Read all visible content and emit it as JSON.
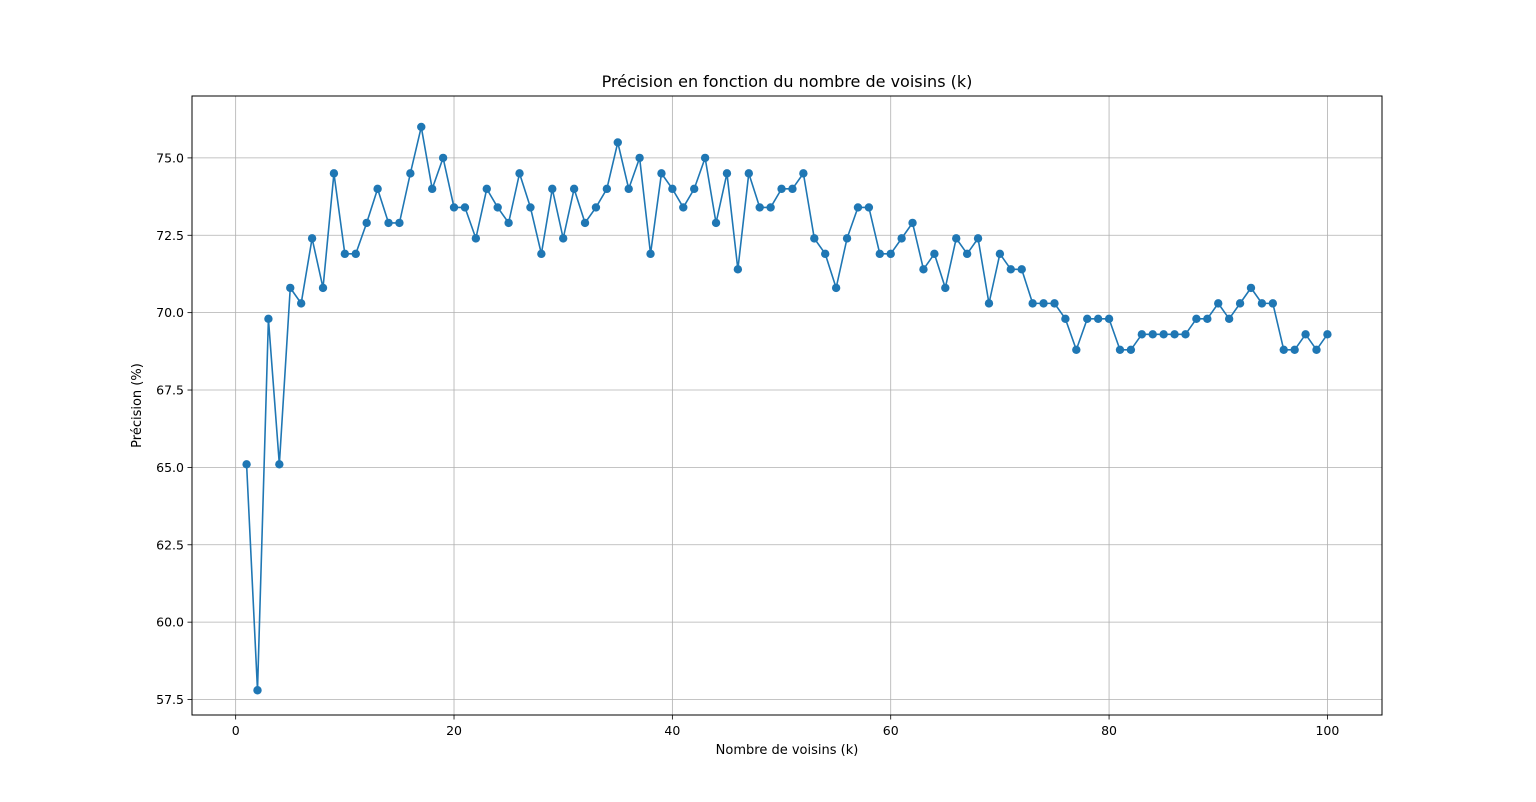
{
  "chart_data": {
    "type": "line",
    "title": "Précision en fonction du nombre de voisins (k)",
    "xlabel": "Nombre de voisins (k)",
    "ylabel": "Précision (%)",
    "xlim": [
      -4,
      105
    ],
    "ylim": [
      57.0,
      77.0
    ],
    "xticks": [
      0,
      20,
      40,
      60,
      80,
      100
    ],
    "xtick_labels": [
      "0",
      "20",
      "40",
      "60",
      "80",
      "100"
    ],
    "yticks": [
      57.5,
      60.0,
      62.5,
      65.0,
      67.5,
      70.0,
      72.5,
      75.0
    ],
    "ytick_labels": [
      "57.5",
      "60.0",
      "62.5",
      "65.0",
      "67.5",
      "70.0",
      "72.5",
      "75.0"
    ],
    "grid": true,
    "marker": "circle",
    "color": "#1f77b4",
    "x": [
      1,
      2,
      3,
      4,
      5,
      6,
      7,
      8,
      9,
      10,
      11,
      12,
      13,
      14,
      15,
      16,
      17,
      18,
      19,
      20,
      21,
      22,
      23,
      24,
      25,
      26,
      27,
      28,
      29,
      30,
      31,
      32,
      33,
      34,
      35,
      36,
      37,
      38,
      39,
      40,
      41,
      42,
      43,
      44,
      45,
      46,
      47,
      48,
      49,
      50,
      51,
      52,
      53,
      54,
      55,
      56,
      57,
      58,
      59,
      60,
      61,
      62,
      63,
      64,
      65,
      66,
      67,
      68,
      69,
      70,
      71,
      72,
      73,
      74,
      75,
      76,
      77,
      78,
      79,
      80,
      81,
      82,
      83,
      84,
      85,
      86,
      87,
      88,
      89,
      90,
      91,
      92,
      93,
      94,
      95,
      96,
      97,
      98,
      99,
      100
    ],
    "values": [
      65.1,
      57.8,
      69.8,
      65.1,
      70.8,
      70.3,
      72.4,
      70.8,
      74.5,
      71.9,
      71.9,
      72.9,
      74.0,
      72.9,
      72.9,
      74.5,
      76.0,
      74.0,
      75.0,
      73.4,
      73.4,
      72.4,
      74.0,
      73.4,
      72.9,
      74.5,
      73.4,
      71.9,
      74.0,
      72.4,
      74.0,
      72.9,
      73.4,
      74.0,
      75.5,
      74.0,
      75.0,
      71.9,
      74.5,
      74.0,
      73.4,
      74.0,
      75.0,
      72.9,
      74.5,
      71.4,
      74.5,
      73.4,
      73.4,
      74.0,
      74.0,
      74.5,
      72.4,
      71.9,
      70.8,
      72.4,
      73.4,
      73.4,
      71.9,
      71.9,
      72.4,
      72.9,
      71.4,
      71.9,
      70.8,
      72.4,
      71.9,
      72.4,
      70.3,
      71.9,
      71.4,
      71.4,
      70.3,
      70.3,
      70.3,
      69.8,
      68.8,
      69.8,
      69.8,
      69.8,
      68.8,
      68.8,
      69.3,
      69.3,
      69.3,
      69.3,
      69.3,
      69.8,
      69.8,
      70.3,
      69.8,
      70.3,
      70.8,
      70.3,
      70.3,
      68.8,
      68.8,
      69.3,
      68.8,
      69.3
    ]
  }
}
